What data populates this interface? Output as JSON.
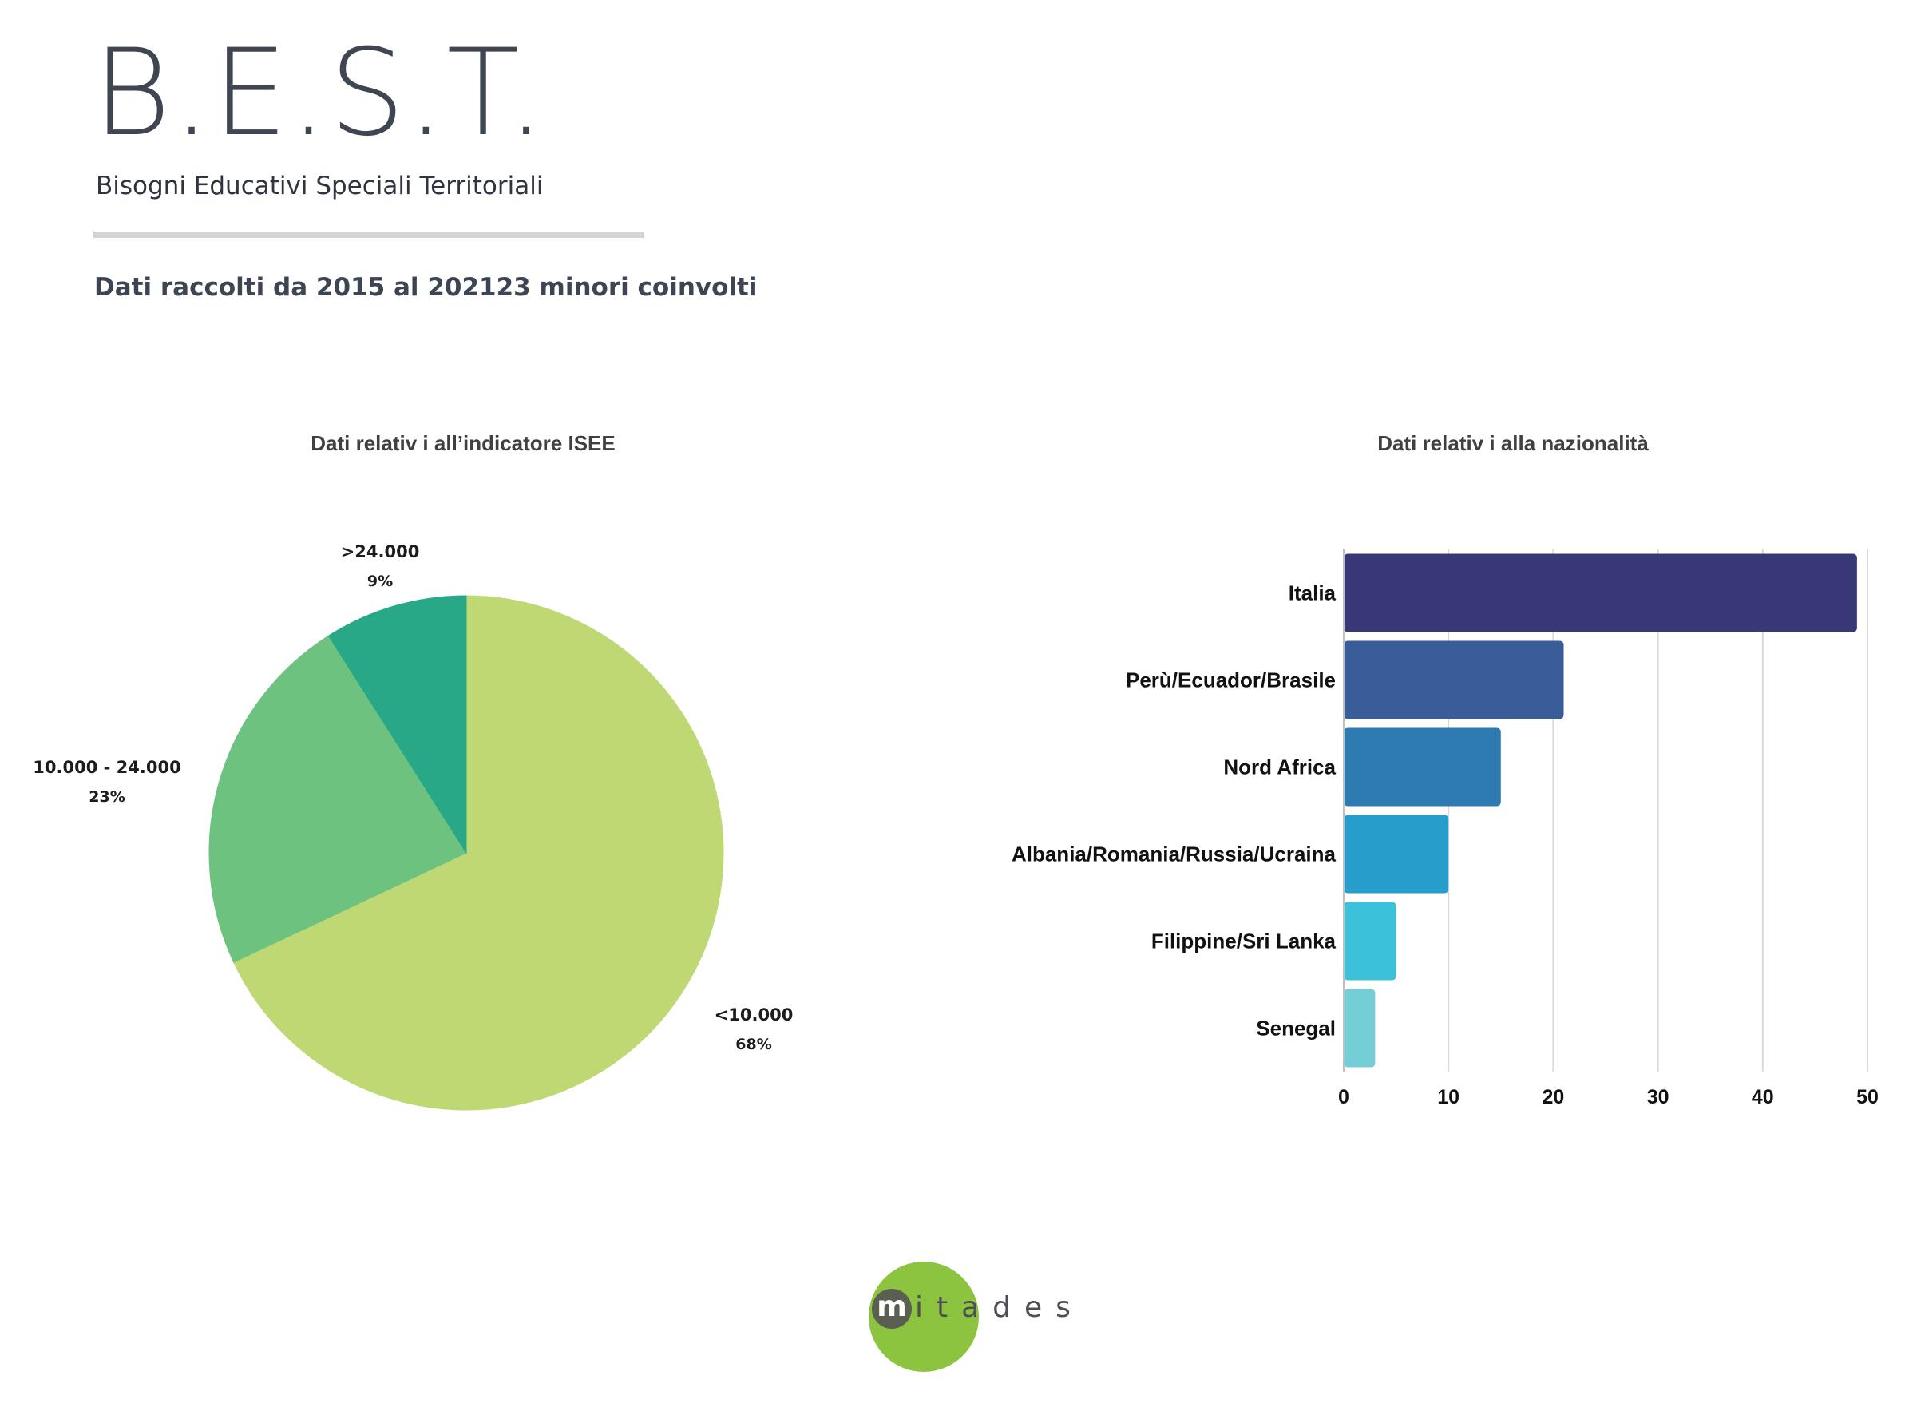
{
  "header": {
    "title": "B.E.S.T.",
    "subtitle": "Bisogni Educativi Speciali Territoriali",
    "data_heading": "Dati raccolti da 2015 al 202123 minori coinvolti"
  },
  "chart_data": [
    {
      "type": "pie",
      "title": "Dati relativ i all’indicatore ISEE",
      "slices": [
        {
          "label": "<10.000",
          "value": 68,
          "percent_label": "68%",
          "color": "#bed974"
        },
        {
          "label": "10.000 - 24.000",
          "value": 23,
          "percent_label": "23%",
          "color": "#6cc27e"
        },
        {
          "label": ">24.000",
          "value": 9,
          "percent_label": "9%",
          "color": "#28a887"
        }
      ]
    },
    {
      "type": "bar",
      "orientation": "horizontal",
      "title": "Dati relativ i alla nazionalità",
      "categories": [
        "Italia",
        "Perù/Ecuador/Brasile",
        "Nord Africa",
        "Albania/Romania/Russia/Ucraina",
        "Filippine/Sri Lanka",
        "Senegal"
      ],
      "values": [
        49,
        21,
        15,
        10,
        5,
        3
      ],
      "colors": [
        "#383876",
        "#385d98",
        "#2e7bb2",
        "#279dcb",
        "#3bc1d9",
        "#74ced6"
      ],
      "xlim": [
        0,
        50
      ],
      "xticks": [
        0,
        10,
        20,
        30,
        40,
        50
      ],
      "grid": true
    }
  ],
  "logo": {
    "first_letter": "m",
    "rest": "itades"
  }
}
